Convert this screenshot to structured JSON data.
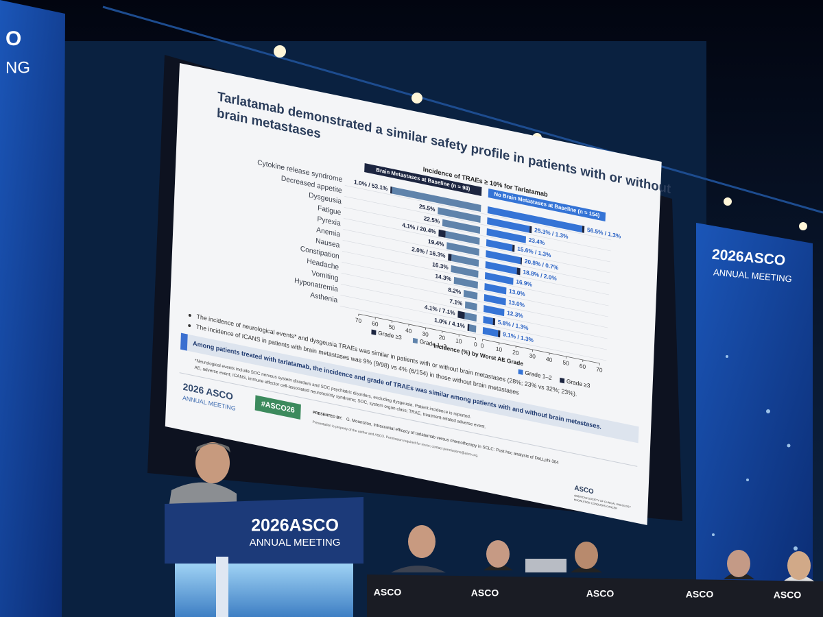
{
  "chart_data": {
    "type": "butterfly",
    "title": "Incidence of TRAEs ≥ 10% for Tarlatamab",
    "xlabel": "Incidence (%) by Worst AE Grade",
    "categories": [
      "Cytokine release syndrome",
      "Decreased appetite",
      "Dysgeusia",
      "Fatigue",
      "Pyrexia",
      "Anemia",
      "Nausea",
      "Constipation",
      "Headache",
      "Vomiting",
      "Hyponatremia",
      "Asthenia"
    ],
    "xlim": [
      0,
      70
    ],
    "xticks": [
      0,
      10,
      20,
      30,
      40,
      50,
      60,
      70
    ],
    "label_separator": " / ",
    "panels": [
      {
        "title": "Brain Metastases at Baseline (n = 98)",
        "series": [
          {
            "name": "Grade 1–2",
            "color": "#5f83ab",
            "values": [
              53.1,
              25.5,
              22.5,
              20.4,
              19.4,
              16.3,
              16.3,
              14.3,
              8.2,
              7.1,
              7.1,
              4.1
            ],
            "value_labels": [
              "53.1%",
              "25.5%",
              "22.5%",
              "20.4%",
              "19.4%",
              "16.3%",
              "16.3%",
              "14.3%",
              "8.2%",
              "7.1%",
              "7.1%",
              "4.1%"
            ]
          },
          {
            "name": "Grade ≥3",
            "color": "#1c2540",
            "values": [
              1.0,
              null,
              null,
              4.1,
              null,
              2.0,
              null,
              null,
              null,
              null,
              4.1,
              1.0
            ],
            "value_labels": [
              "1.0%",
              null,
              null,
              "4.1%",
              null,
              "2.0%",
              null,
              null,
              null,
              null,
              "4.1%",
              "1.0%"
            ]
          }
        ]
      },
      {
        "title": "No Brain Metastases at Baseline (n = 154)",
        "series": [
          {
            "name": "Grade 1–2",
            "color": "#3574d6",
            "values": [
              56.5,
              25.3,
              23.4,
              15.6,
              20.8,
              18.8,
              16.9,
              13.0,
              13.0,
              12.3,
              5.8,
              9.1
            ],
            "value_labels": [
              "56.5%",
              "25.3%",
              "23.4%",
              "15.6%",
              "20.8%",
              "18.8%",
              "16.9%",
              "13.0%",
              "13.0%",
              "12.3%",
              "5.8%",
              "9.1%"
            ]
          },
          {
            "name": "Grade ≥3",
            "color": "#1c2540",
            "values": [
              1.3,
              1.3,
              null,
              1.3,
              0.7,
              2.0,
              null,
              null,
              null,
              null,
              1.3,
              1.3
            ],
            "value_labels": [
              "1.3%",
              "1.3%",
              null,
              "1.3%",
              "0.7%",
              "2.0%",
              null,
              null,
              null,
              null,
              "1.3%",
              "1.3%"
            ]
          }
        ]
      }
    ]
  },
  "slide": {
    "title_lines": [
      "Tarlatamab demonstrated a similar safety profile in patients with or without",
      "brain metastases"
    ],
    "bullets": [
      "The incidence of neurological events* and dysgeusia TRAEs was similar in patients with or without brain metastases (28%; 23% vs 32%; 23%).",
      "The incidence of ICANS in patients with brain metastases was 9% (9/98) vs 4% (6/154) in those without brain metastases"
    ],
    "key_message": "Among patients treated with tarlatamab, the incidence and grade of TRAEs was similar among patients with and without brain metastases.",
    "footnotes": [
      "*Neurological events include SOC nervous system disorders and SOC psychiatric disorders, excluding dysgeusia. Patient incidence is reported.",
      "AE, adverse event; ICANS, immune effector cell-associated neurotoxicity syndrome; SOC, system organ class; TRAE, treatment-related adverse event."
    ],
    "meeting_logo": {
      "title": "2026 ASCO",
      "subtitle": "ANNUAL MEETING"
    },
    "hashtag": "#ASCO26",
    "presented_by_label": "PRESENTED BY:",
    "presenter": "G. Mountzios, Intracranial efficacy of tarlatamab versus chemotherapy in SCLC: Post hoc analysis of DeLLphi-304",
    "permission": "Presentation is property of the author and ASCO. Permission required for reuse; contact permissions@asco.org.",
    "society_logo": {
      "name": "ASCO",
      "line1": "AMERICAN SOCIETY OF CLINICAL ONCOLOGY",
      "line2": "KNOWLEDGE CONQUERS CANCER"
    }
  },
  "stage": {
    "left_banner": [
      "O",
      "NG"
    ],
    "right_banner": {
      "title": "2026ASCO",
      "subtitle": "ANNUAL MEETING"
    },
    "podium": {
      "title": "2026ASCO",
      "subtitle": "ANNUAL MEETING"
    },
    "table_labels": [
      "ASCO",
      "ASCO",
      "ASCO",
      "ASCO",
      "ASCO"
    ]
  }
}
